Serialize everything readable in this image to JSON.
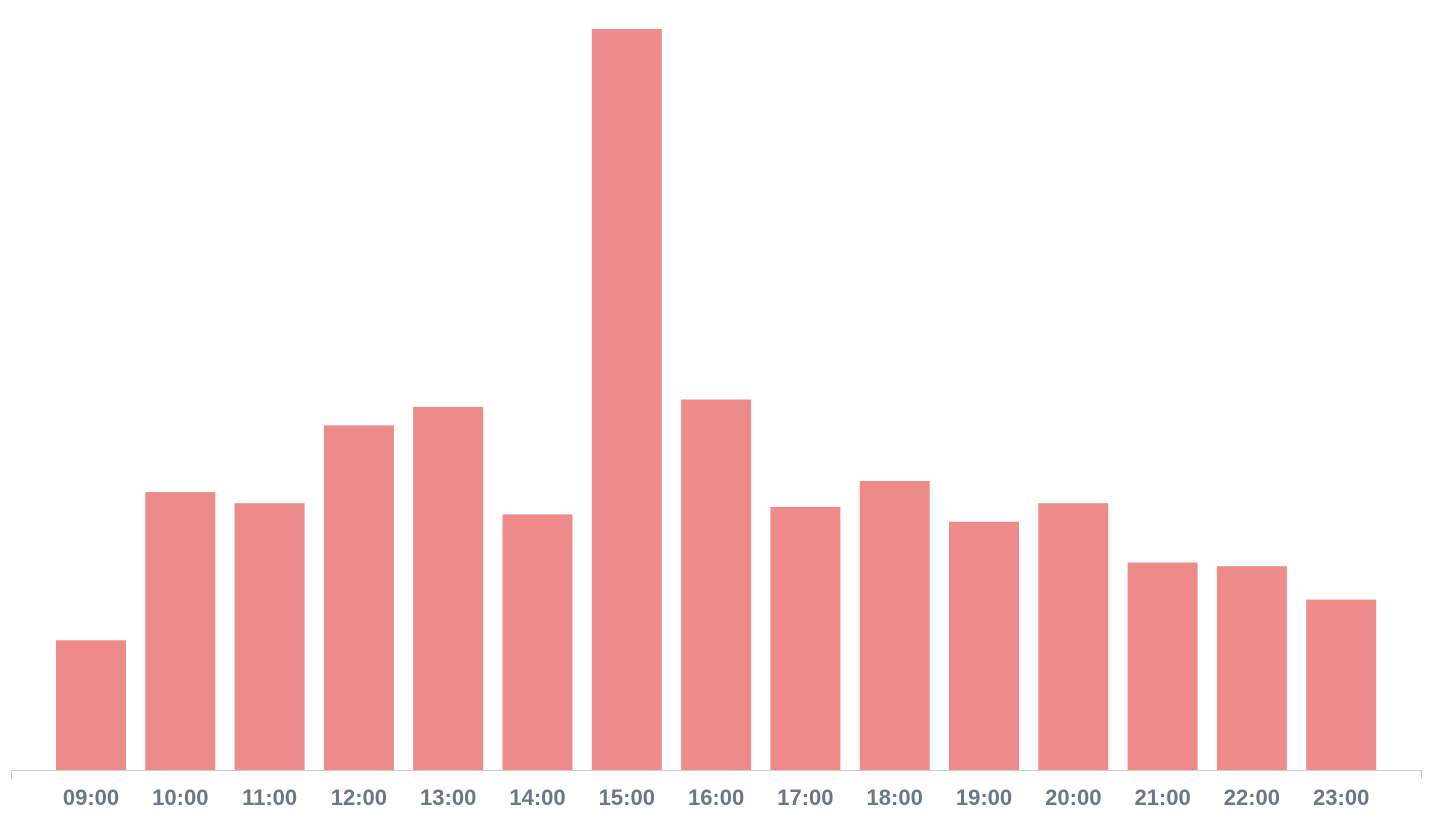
{
  "chart_data": {
    "type": "bar",
    "categories": [
      "09:00",
      "10:00",
      "11:00",
      "12:00",
      "13:00",
      "14:00",
      "15:00",
      "16:00",
      "17:00",
      "18:00",
      "19:00",
      "20:00",
      "21:00",
      "22:00",
      "23:00"
    ],
    "values": [
      1.75,
      3.75,
      3.6,
      4.65,
      4.9,
      3.45,
      10.0,
      5.0,
      3.55,
      3.9,
      3.35,
      3.6,
      2.8,
      2.75,
      2.3
    ],
    "title": "",
    "xlabel": "",
    "ylabel": "",
    "ylim": [
      0,
      10
    ],
    "grid": false,
    "legend": "none"
  },
  "colors": {
    "bar": "#ED8B8B",
    "axis": "#c9ced4",
    "tick_text": "#6b7787",
    "background": "#ffffff"
  }
}
